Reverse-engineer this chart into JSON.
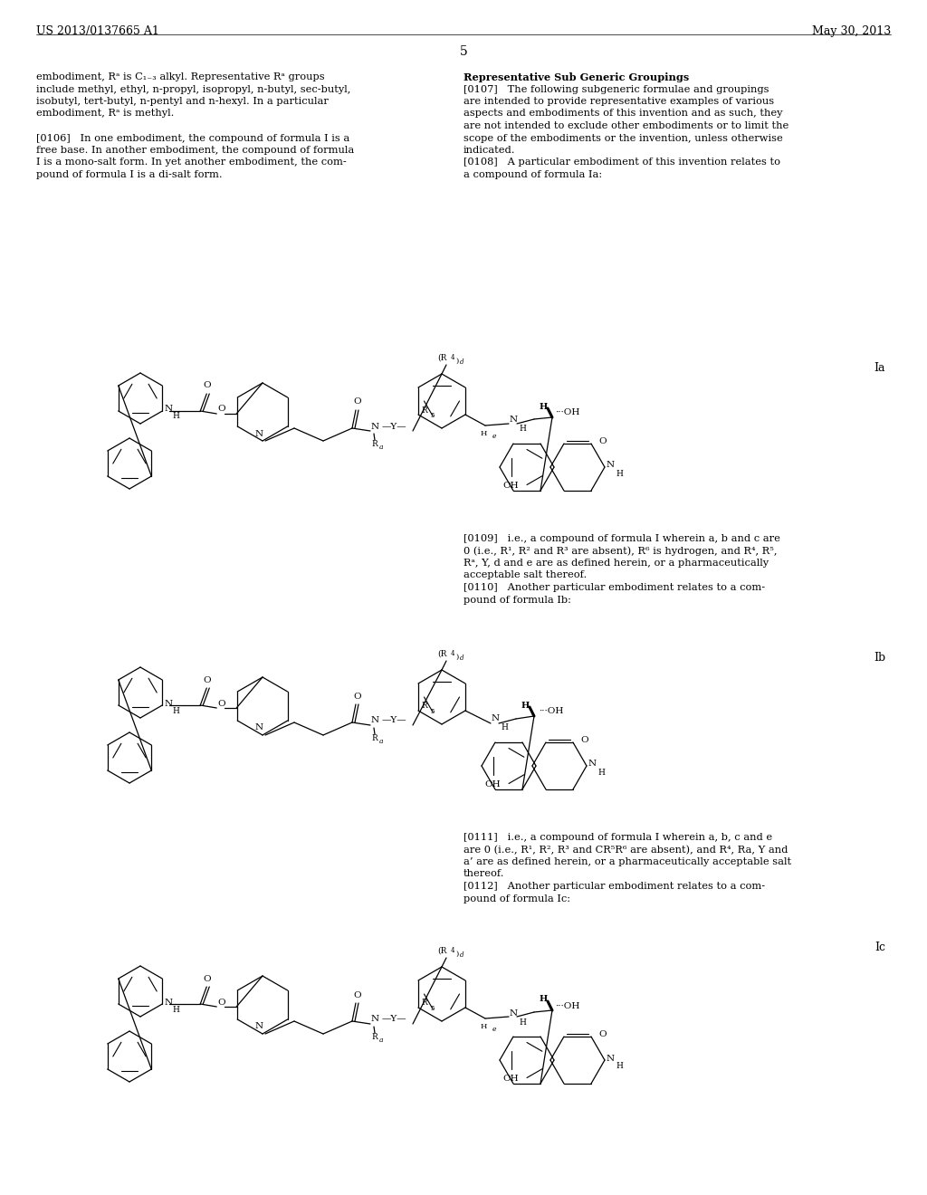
{
  "background_color": "#ffffff",
  "header_left": "US 2013/0137665 A1",
  "header_right": "May 30, 2013",
  "page_number": "5"
}
